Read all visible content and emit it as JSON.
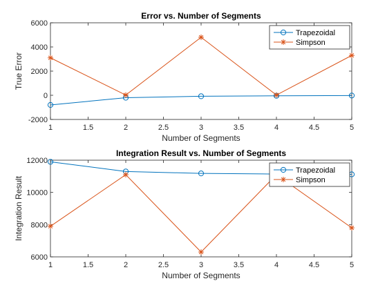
{
  "colors": {
    "series1": "#0072BD",
    "series2": "#D95319",
    "axis": "#262626",
    "background": "#ffffff"
  },
  "chart_data": [
    {
      "type": "line",
      "title": "Error vs. Number of Segments",
      "xlabel": "Number of Segments",
      "ylabel": "True Error",
      "xlim": [
        1,
        5
      ],
      "ylim": [
        -2000,
        6000
      ],
      "xticks": [
        1,
        1.5,
        2,
        2.5,
        3,
        3.5,
        4,
        4.5,
        5
      ],
      "yticks": [
        -2000,
        0,
        2000,
        4000,
        6000
      ],
      "grid": false,
      "legend_position": "top-right",
      "x": [
        1,
        2,
        3,
        4,
        5
      ],
      "series": [
        {
          "name": "Trapezoidal",
          "marker": "circle",
          "values": [
            -800,
            -200,
            -80,
            -40,
            -20
          ]
        },
        {
          "name": "Simpson",
          "marker": "asterisk",
          "values": [
            3100,
            20,
            4800,
            20,
            3300
          ]
        }
      ]
    },
    {
      "type": "line",
      "title": "Integration Result vs. Number of Segments",
      "xlabel": "Number of Segments",
      "ylabel": "Integration Result",
      "xlim": [
        1,
        5
      ],
      "ylim": [
        6000,
        12000
      ],
      "xticks": [
        1,
        1.5,
        2,
        2.5,
        3,
        3.5,
        4,
        4.5,
        5
      ],
      "yticks": [
        6000,
        8000,
        10000,
        12000
      ],
      "grid": false,
      "legend_position": "top-right",
      "x": [
        1,
        2,
        3,
        4,
        5
      ],
      "series": [
        {
          "name": "Trapezoidal",
          "marker": "circle",
          "values": [
            11900,
            11300,
            11180,
            11140,
            11120
          ]
        },
        {
          "name": "Simpson",
          "marker": "asterisk",
          "values": [
            7900,
            11100,
            6300,
            11100,
            7800
          ]
        }
      ]
    }
  ]
}
